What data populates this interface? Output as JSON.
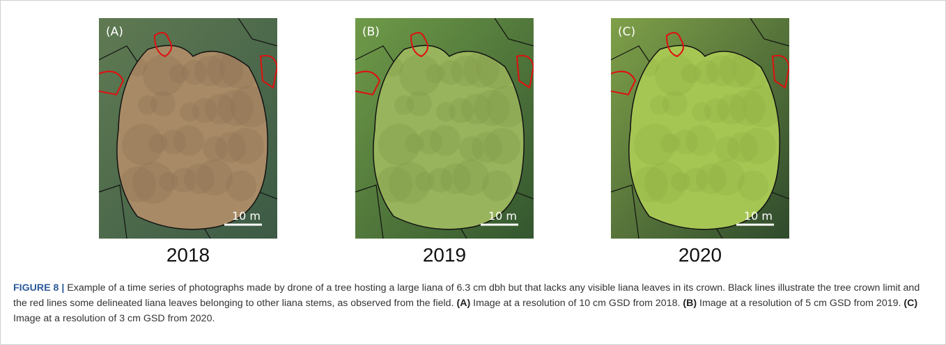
{
  "panels": [
    {
      "label": "(A)",
      "scale": "10 m",
      "year": "2018"
    },
    {
      "label": "(B)",
      "scale": "10 m",
      "year": "2019"
    },
    {
      "label": "(C)",
      "scale": "10 m",
      "year": "2020"
    }
  ],
  "caption": {
    "label": "FIGURE 8 |",
    "text": "Example of a time series of photographs made by drone of a tree hosting a large liana of 6.3 cm dbh but that lacks any visible liana leaves in its crown. Black lines illustrate the tree crown limit and the red lines some delineated liana leaves belonging to other liana stems, as observed from the field.",
    "parts": [
      {
        "label": "(A)",
        "text": "Image at a resolution of 10 cm GSD from 2018."
      },
      {
        "label": "(B)",
        "text": "Image at a resolution of 5 cm GSD from 2019."
      },
      {
        "label": "(C)",
        "text": "Image at a resolution of 3 cm GSD from 2020."
      }
    ]
  }
}
